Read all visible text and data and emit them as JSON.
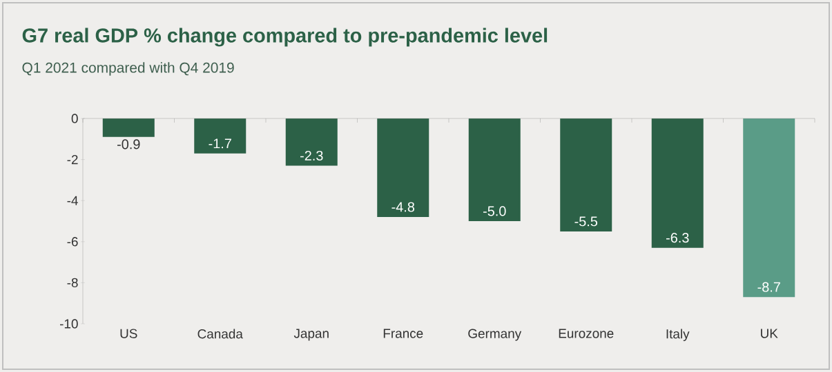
{
  "chart_data": {
    "type": "bar",
    "title": "G7 real GDP % change compared to pre-pandemic level",
    "subtitle": "Q1 2021 compared with Q4 2019",
    "categories": [
      "US",
      "Canada",
      "Japan",
      "France",
      "Germany",
      "Eurozone",
      "Italy",
      "UK"
    ],
    "values": [
      -0.9,
      -1.7,
      -2.3,
      -4.8,
      -5.0,
      -5.5,
      -6.3,
      -8.7
    ],
    "value_labels": [
      "-0.9",
      "-1.7",
      "-2.3",
      "-4.8",
      "-5.0",
      "-5.5",
      "-6.3",
      "-8.7"
    ],
    "colors": [
      "#2c6147",
      "#2c6147",
      "#2c6147",
      "#2c6147",
      "#2c6147",
      "#2c6147",
      "#2c6147",
      "#5a9c87"
    ],
    "ylim": [
      -10,
      0
    ],
    "yticks": [
      -10,
      -8,
      -6,
      -4,
      -2,
      0
    ],
    "grid": false
  }
}
